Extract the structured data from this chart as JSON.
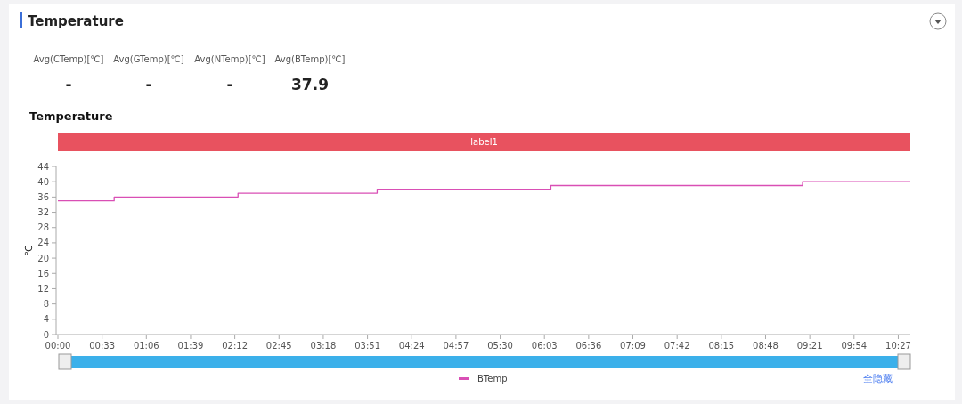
{
  "chart_data": [
    {
      "type": "other",
      "title": "Temperature",
      "categories": [
        "Avg(CTemp)[℃]",
        "Avg(GTemp)[℃]",
        "Avg(NTemp)[℃]",
        "Avg(BTemp)[℃]"
      ],
      "value_labels": [
        "-",
        "-",
        "-",
        "37.9"
      ]
    },
    {
      "type": "step",
      "title": "Temperature",
      "ylabel": "℃",
      "annotations": [
        "label1",
        "全隐藏"
      ],
      "x": [
        0,
        0.7,
        2.24,
        3.97,
        6.13,
        9.26,
        10.6
      ],
      "series": [
        {
          "name": "BTemp",
          "color": "#d94fb5",
          "values": [
            35,
            36,
            37,
            38,
            39,
            40,
            40
          ]
        }
      ],
      "xlim": [
        0,
        10.6
      ],
      "xticks": [
        {
          "value": 0,
          "label": "00:00"
        },
        {
          "value": 0.55,
          "label": "00:33"
        },
        {
          "value": 1.1,
          "label": "01:06"
        },
        {
          "value": 1.65,
          "label": "01:39"
        },
        {
          "value": 2.2,
          "label": "02:12"
        },
        {
          "value": 2.75,
          "label": "02:45"
        },
        {
          "value": 3.3,
          "label": "03:18"
        },
        {
          "value": 3.85,
          "label": "03:51"
        },
        {
          "value": 4.4,
          "label": "04:24"
        },
        {
          "value": 4.95,
          "label": "04:57"
        },
        {
          "value": 5.5,
          "label": "05:30"
        },
        {
          "value": 6.05,
          "label": "06:03"
        },
        {
          "value": 6.6,
          "label": "06:36"
        },
        {
          "value": 7.15,
          "label": "07:09"
        },
        {
          "value": 7.7,
          "label": "07:42"
        },
        {
          "value": 8.25,
          "label": "08:15"
        },
        {
          "value": 8.8,
          "label": "08:48"
        },
        {
          "value": 9.35,
          "label": "09:21"
        },
        {
          "value": 9.9,
          "label": "09:54"
        },
        {
          "value": 10.45,
          "label": "10:27"
        }
      ],
      "ylim": [
        0,
        44
      ],
      "yticks": [
        0,
        4,
        8,
        12,
        16,
        20,
        24,
        28,
        32,
        36,
        40,
        44
      ],
      "legend": "bottom"
    }
  ]
}
